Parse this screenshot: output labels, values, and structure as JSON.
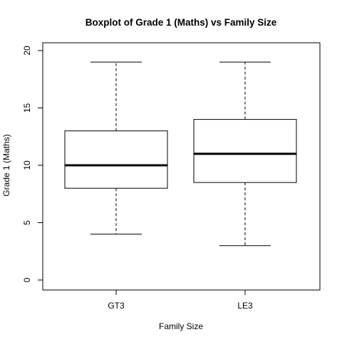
{
  "chart_data": {
    "type": "boxplot",
    "title": "Boxplot of Grade 1 (Maths)  vs  Family Size",
    "xlabel": "Family Size",
    "ylabel": "Grade 1 (Maths)",
    "ylim": [
      0,
      20
    ],
    "yticks": [
      0,
      5,
      10,
      15,
      20
    ],
    "grid": false,
    "categories": [
      "GT3",
      "LE3"
    ],
    "boxes": [
      {
        "category": "GT3",
        "min": 4,
        "q1": 8,
        "median": 10,
        "q3": 13,
        "max": 19
      },
      {
        "category": "LE3",
        "min": 3,
        "q1": 8.5,
        "median": 11,
        "q3": 14,
        "max": 19
      }
    ],
    "colors": {
      "stroke": "#000000",
      "background": "#ffffff"
    }
  }
}
